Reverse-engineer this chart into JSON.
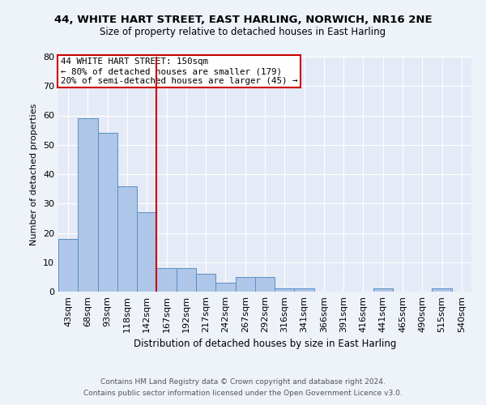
{
  "title": "44, WHITE HART STREET, EAST HARLING, NORWICH, NR16 2NE",
  "subtitle": "Size of property relative to detached houses in East Harling",
  "xlabel": "Distribution of detached houses by size in East Harling",
  "ylabel": "Number of detached properties",
  "bar_labels": [
    "43sqm",
    "68sqm",
    "93sqm",
    "118sqm",
    "142sqm",
    "167sqm",
    "192sqm",
    "217sqm",
    "242sqm",
    "267sqm",
    "292sqm",
    "316sqm",
    "341sqm",
    "366sqm",
    "391sqm",
    "416sqm",
    "441sqm",
    "465sqm",
    "490sqm",
    "515sqm",
    "540sqm"
  ],
  "bar_values": [
    18,
    59,
    54,
    36,
    27,
    8,
    8,
    6,
    3,
    5,
    5,
    1,
    1,
    0,
    0,
    0,
    1,
    0,
    0,
    1,
    0
  ],
  "bar_color": "#aec6e8",
  "bar_edge_color": "#5a8fc2",
  "vline_x": 4.5,
  "vline_color": "#cc0000",
  "ylim": [
    0,
    80
  ],
  "yticks": [
    0,
    10,
    20,
    30,
    40,
    50,
    60,
    70,
    80
  ],
  "annotation_text": "44 WHITE HART STREET: 150sqm\n← 80% of detached houses are smaller (179)\n20% of semi-detached houses are larger (45) →",
  "annotation_box_color": "#cc0000",
  "footer1": "Contains HM Land Registry data © Crown copyright and database right 2024.",
  "footer2": "Contains public sector information licensed under the Open Government Licence v3.0.",
  "background_color": "#eef2f9",
  "plot_background": "#e4eaf6"
}
